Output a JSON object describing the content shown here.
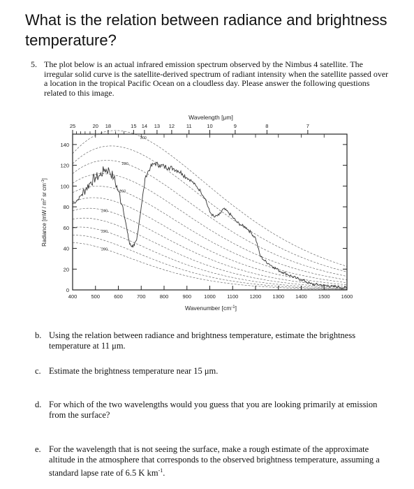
{
  "page": {
    "title": "What is the relation between radiance and brightness temperature?"
  },
  "question5": {
    "number": "5.",
    "text": "The plot below is an actual infrared emission spectrum observed by the Nimbus 4 satellite. The irregular solid curve is the satellite-derived spectrum of radiant intensity when the satellite passed over a location in the tropical Pacific Ocean on a cloudless day. Please answer the following questions related to this image."
  },
  "chart_data": {
    "type": "line",
    "x_label_bottom": "Wavenumber [cm",
    "x_label_bottom_sup": "-1",
    "x_label_bottom_end": "]",
    "x_label_top": "Wavelength [μm]",
    "y_label": "Radiance [mW / m",
    "y_label_sup1": "2",
    "y_label_mid": " sr cm",
    "y_label_sup2": "-1",
    "y_label_end": "]",
    "xlim": [
      400,
      1600
    ],
    "ylim": [
      0,
      150
    ],
    "x_ticks": [
      "400",
      "500",
      "600",
      "700",
      "800",
      "900",
      "1000",
      "1100",
      "1200",
      "1300",
      "1400",
      "1500",
      "1600"
    ],
    "y_ticks": [
      "0",
      "20",
      "40",
      "60",
      "80",
      "100",
      "120",
      "140"
    ],
    "top_tick_labels": [
      {
        "label": "25",
        "wavelength": 25
      },
      {
        "label": "20",
        "wavelength": 20
      },
      {
        "label": "18",
        "wavelength": 18
      },
      {
        "label": "15",
        "wavelength": 15
      },
      {
        "label": "14",
        "wavelength": 14
      },
      {
        "label": "13",
        "wavelength": 13
      },
      {
        "label": "12",
        "wavelength": 12
      },
      {
        "label": "11",
        "wavelength": 11
      },
      {
        "label": "10",
        "wavelength": 10
      },
      {
        "label": "9",
        "wavelength": 9
      },
      {
        "label": "8",
        "wavelength": 8
      },
      {
        "label": "7",
        "wavelength": 7
      }
    ],
    "planck_curve_labels": [
      {
        "label": "300",
        "temperature_K": 300
      },
      {
        "label": "280",
        "temperature_K": 280
      },
      {
        "label": "260",
        "temperature_K": 260
      },
      {
        "label": "240",
        "temperature_K": 240
      },
      {
        "label": "220",
        "temperature_K": 220
      },
      {
        "label": "200",
        "temperature_K": 200
      }
    ],
    "planck_curve_temperatures_K": [
      300,
      290,
      280,
      270,
      260,
      250,
      240,
      230,
      220,
      210,
      200
    ],
    "series": [
      {
        "x": [
          400,
          420,
          440,
          460,
          480,
          500,
          520,
          540,
          560,
          580,
          600,
          620,
          640,
          650,
          660,
          670,
          680,
          700,
          720,
          740,
          760,
          780,
          800,
          820,
          840,
          860,
          880,
          900,
          920,
          940,
          960,
          980,
          1000,
          1020,
          1040,
          1060,
          1080,
          1100,
          1120,
          1140,
          1160,
          1180,
          1200,
          1220,
          1240,
          1260,
          1280,
          1300,
          1320,
          1340,
          1360,
          1380,
          1400,
          1420,
          1440,
          1460,
          1480,
          1500,
          1520,
          1540,
          1560,
          1580,
          1600
        ],
        "y": [
          83,
          86,
          92,
          98,
          104,
          108,
          110,
          116,
          115,
          108,
          95,
          80,
          55,
          44,
          42,
          43,
          48,
          80,
          110,
          118,
          122,
          120,
          119,
          118,
          117,
          115,
          112,
          108,
          105,
          100,
          95,
          88,
          75,
          70,
          72,
          78,
          75,
          70,
          65,
          62,
          60,
          55,
          50,
          33,
          28,
          25,
          22,
          19,
          17,
          15,
          13,
          11,
          10,
          8,
          6,
          5,
          5,
          4,
          4,
          3,
          3,
          2,
          2
        ]
      }
    ]
  },
  "question_b": {
    "letter": "b.",
    "text": "Using the relation between radiance and brightness temperature, estimate the brightness temperature at 11 μm."
  },
  "question_c": {
    "letter": "c.",
    "text": "Estimate the brightness temperature near 15 μm."
  },
  "question_d": {
    "letter": "d.",
    "text": "For which of the two wavelengths would you guess that you are looking primarily at emission from the surface?"
  },
  "question_e": {
    "letter": "e.",
    "text_before": "For the wavelength that is not seeing the surface, make a rough estimate of the approximate altitude in the atmosphere that corresponds to the observed brightness temperature, assuming a standard lapse rate of 6.5 K km",
    "text_sup": "-1",
    "text_after": "."
  }
}
